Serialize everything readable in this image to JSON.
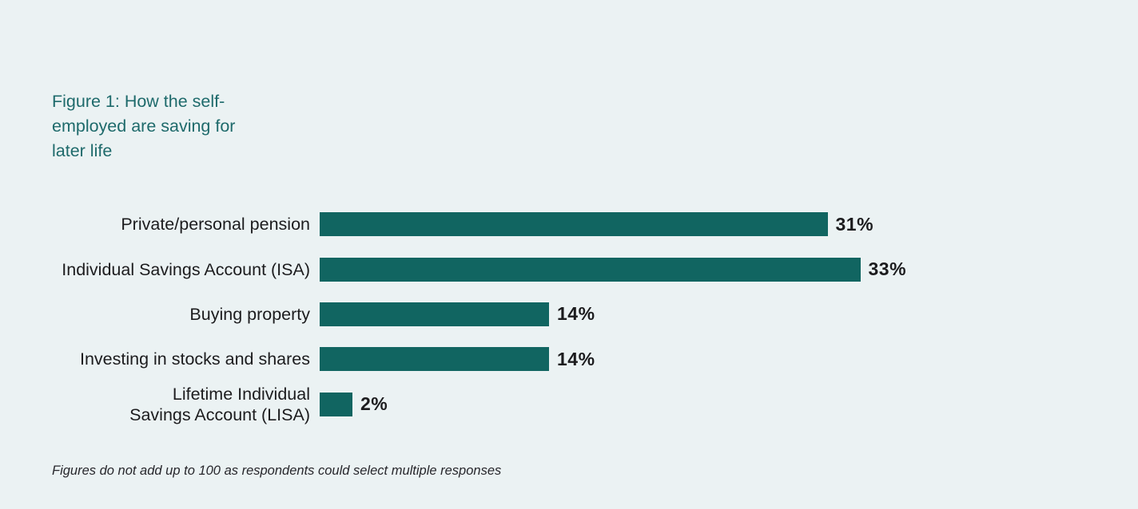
{
  "title": "Figure 1: How the self-\nemployed are saving for\nlater life",
  "note": "Figures do not add up to 100 as respondents could select multiple responses",
  "colors": {
    "background": "#ebf2f3",
    "bar": "#116561",
    "title": "#1e6a6b",
    "text": "#1c1c1e",
    "note": "#27272c"
  },
  "chart_data": {
    "type": "bar",
    "orientation": "horizontal",
    "title": "Figure 1: How the self-employed are saving for later life",
    "categories": [
      "Private/personal pension",
      "Individual Savings Account (ISA)",
      "Buying property",
      "Investing in stocks and shares",
      "Lifetime Individual\nSavings Account (LISA)"
    ],
    "values": [
      31,
      33,
      14,
      14,
      2
    ],
    "unit": "%",
    "value_labels": [
      "31%",
      "33%",
      "14%",
      "14%",
      "2%"
    ],
    "xlim": [
      0,
      35
    ],
    "grid": false,
    "legend": "none",
    "note": "Figures do not add up to 100 as respondents could select multiple responses"
  }
}
